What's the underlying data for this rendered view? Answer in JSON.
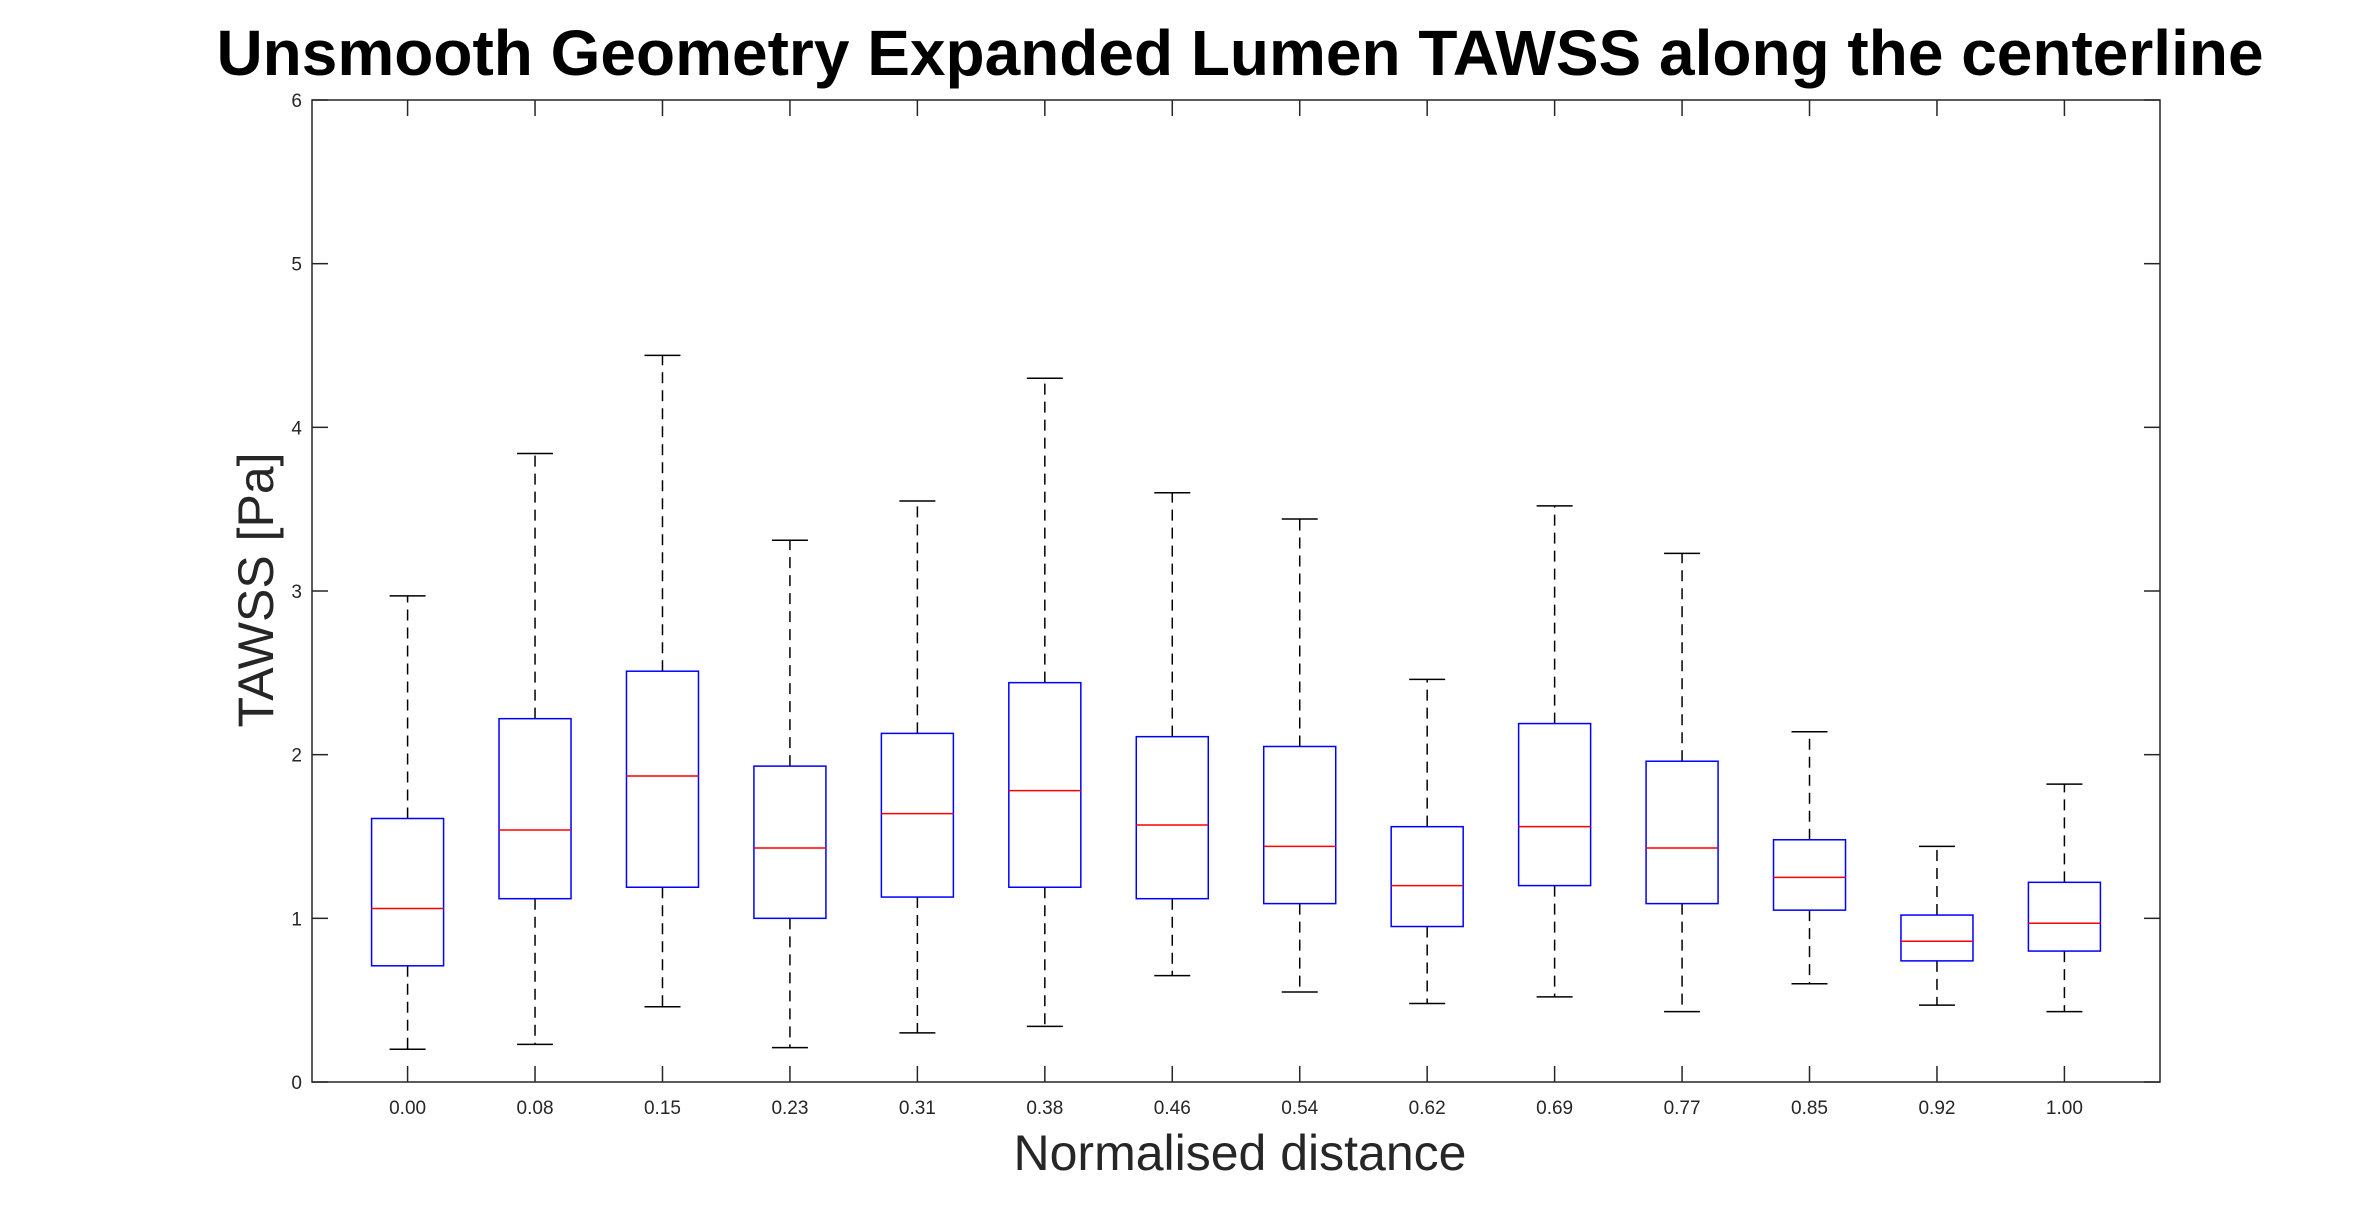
{
  "chart_data": {
    "type": "boxplot",
    "title": "Unsmooth Geometry Expanded Lumen TAWSS along the centerline",
    "xlabel": "Normalised distance",
    "ylabel": "TAWSS [Pa]",
    "ylim": [
      0,
      6
    ],
    "yticks": [
      "0",
      "1",
      "2",
      "3",
      "4",
      "5",
      "6"
    ],
    "grid": false,
    "categories": [
      "0.00",
      "0.08",
      "0.15",
      "0.23",
      "0.31",
      "0.38",
      "0.46",
      "0.54",
      "0.62",
      "0.69",
      "0.77",
      "0.85",
      "0.92",
      "1.00"
    ],
    "boxes": [
      {
        "whisker_low": 0.2,
        "q1": 0.71,
        "median": 1.06,
        "q3": 1.61,
        "whisker_high": 2.97
      },
      {
        "whisker_low": 0.23,
        "q1": 1.12,
        "median": 1.54,
        "q3": 2.22,
        "whisker_high": 3.84
      },
      {
        "whisker_low": 0.46,
        "q1": 1.19,
        "median": 1.87,
        "q3": 2.51,
        "whisker_high": 4.44
      },
      {
        "whisker_low": 0.21,
        "q1": 1.0,
        "median": 1.43,
        "q3": 1.93,
        "whisker_high": 3.31
      },
      {
        "whisker_low": 0.3,
        "q1": 1.13,
        "median": 1.64,
        "q3": 2.13,
        "whisker_high": 3.55
      },
      {
        "whisker_low": 0.34,
        "q1": 1.19,
        "median": 1.78,
        "q3": 2.44,
        "whisker_high": 4.3
      },
      {
        "whisker_low": 0.65,
        "q1": 1.12,
        "median": 1.57,
        "q3": 2.11,
        "whisker_high": 3.6
      },
      {
        "whisker_low": 0.55,
        "q1": 1.09,
        "median": 1.44,
        "q3": 2.05,
        "whisker_high": 3.44
      },
      {
        "whisker_low": 0.48,
        "q1": 0.95,
        "median": 1.2,
        "q3": 1.56,
        "whisker_high": 2.46
      },
      {
        "whisker_low": 0.52,
        "q1": 1.2,
        "median": 1.56,
        "q3": 2.19,
        "whisker_high": 3.52
      },
      {
        "whisker_low": 0.43,
        "q1": 1.09,
        "median": 1.43,
        "q3": 1.96,
        "whisker_high": 3.23
      },
      {
        "whisker_low": 0.6,
        "q1": 1.05,
        "median": 1.25,
        "q3": 1.48,
        "whisker_high": 2.14
      },
      {
        "whisker_low": 0.47,
        "q1": 0.74,
        "median": 0.86,
        "q3": 1.02,
        "whisker_high": 1.44
      },
      {
        "whisker_low": 0.43,
        "q1": 0.8,
        "median": 0.97,
        "q3": 1.22,
        "whisker_high": 1.82
      }
    ],
    "colors": {
      "box": "#0000ff",
      "median": "#ff0000",
      "whisker": "#000000",
      "axis": "#262626"
    }
  }
}
